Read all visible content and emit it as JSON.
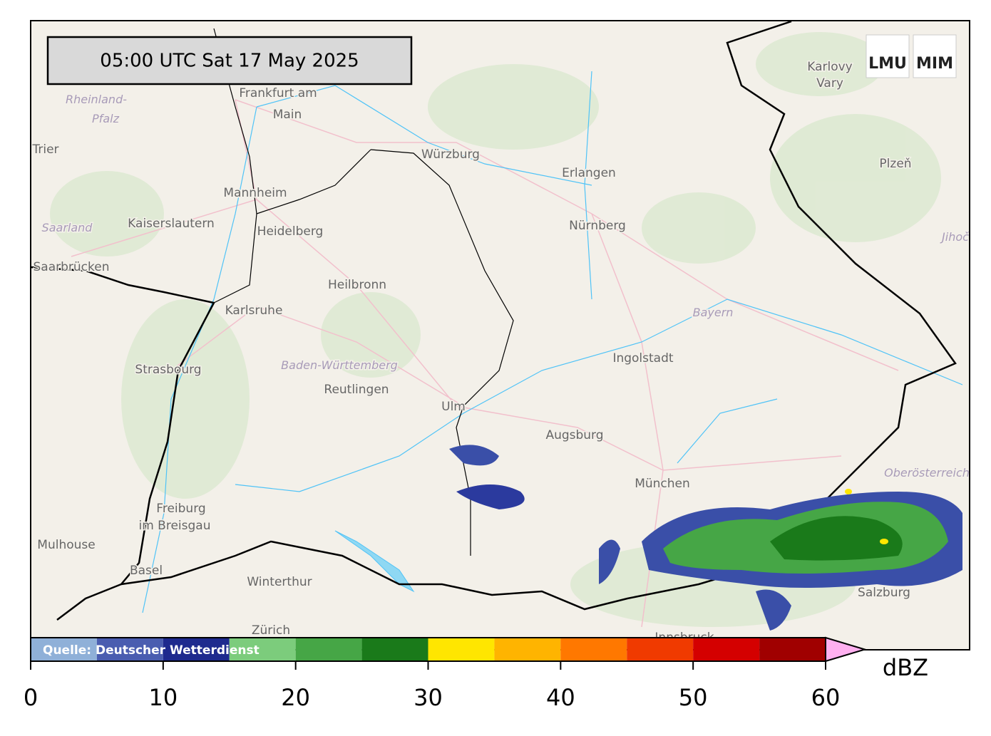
{
  "timestamp": "05:00 UTC  Sat 17 May 2025",
  "logo": [
    "LMU",
    "MIM"
  ],
  "places": [
    "Frankfurt am",
    "Main",
    "Würzburg",
    "Erlangen",
    "Nürnberg",
    "Mannheim",
    "Kaiserslautern",
    "Heidelberg",
    "Heilbronn",
    "Karlsruhe",
    "Strasbourg",
    "Reutlingen",
    "Ulm",
    "Augsburg",
    "Ingolstadt",
    "München",
    "Freiburg",
    "im Breisgau",
    "Mulhouse",
    "Basel",
    "Winterthur",
    "Zürich",
    "Saarbrücken",
    "Trier",
    "Karlovy",
    "Vary",
    "Plzeň",
    "Salzburg",
    "Innsbruck"
  ],
  "regions": [
    "Rheinland-",
    "Pfalz",
    "Saarland",
    "Baden-Württemberg",
    "Bayern",
    "Oberösterreich",
    "Jihoč"
  ],
  "colorbar": {
    "bins": [
      0,
      5,
      10,
      15,
      20,
      25,
      30,
      35,
      40,
      45,
      50,
      55,
      60
    ],
    "colors": [
      "#8fb0d8",
      "#4a5db0",
      "#1e2a8e",
      "#7ccc7c",
      "#46a646",
      "#1a7a1a",
      "#ffe600",
      "#ffb400",
      "#ff7800",
      "#f03a00",
      "#d40000",
      "#a00000"
    ],
    "over_color": "#ffb0f0",
    "ticks": [
      0,
      10,
      20,
      30,
      40,
      50,
      60
    ],
    "unit": "dBZ",
    "source": "Quelle: Deutscher Wetterdienst"
  }
}
